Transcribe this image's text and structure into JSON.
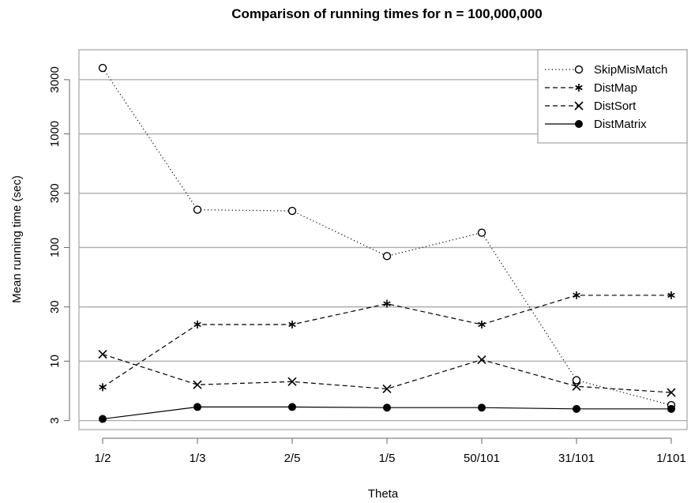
{
  "chart_data": {
    "type": "line",
    "title": "Comparison of running times for n = 100,000,000",
    "xlabel": "Theta",
    "ylabel": "Mean running time (sec)",
    "categories": [
      "1/2",
      "1/3",
      "2/5",
      "1/5",
      "50/101",
      "31/101",
      "1/101"
    ],
    "y_scale": "log",
    "y_ticks": [
      3,
      10,
      30,
      100,
      300,
      1000,
      3000
    ],
    "y_tick_labels": [
      "3",
      "10",
      "30",
      "100",
      "300",
      "1000",
      "3000"
    ],
    "ylim": [
      2.5,
      5500
    ],
    "grid": "horizontal",
    "legend_position": "top-right",
    "series": [
      {
        "name": "SkipMisMatch",
        "line": "dotted",
        "marker": "open-circle",
        "values": [
          3800,
          215,
          210,
          84,
          135,
          6.8,
          4.1
        ]
      },
      {
        "name": "DistMap",
        "line": "dashed",
        "marker": "asterisk",
        "values": [
          5.9,
          21,
          21,
          32,
          21,
          38,
          38
        ]
      },
      {
        "name": "DistSort",
        "line": "dashed",
        "marker": "cross",
        "values": [
          11.5,
          6.2,
          6.6,
          5.7,
          10.3,
          6.0,
          5.3
        ]
      },
      {
        "name": "DistMatrix",
        "line": "solid",
        "marker": "filled-circle",
        "values": [
          3.1,
          3.95,
          3.95,
          3.9,
          3.9,
          3.8,
          3.8
        ]
      }
    ]
  }
}
